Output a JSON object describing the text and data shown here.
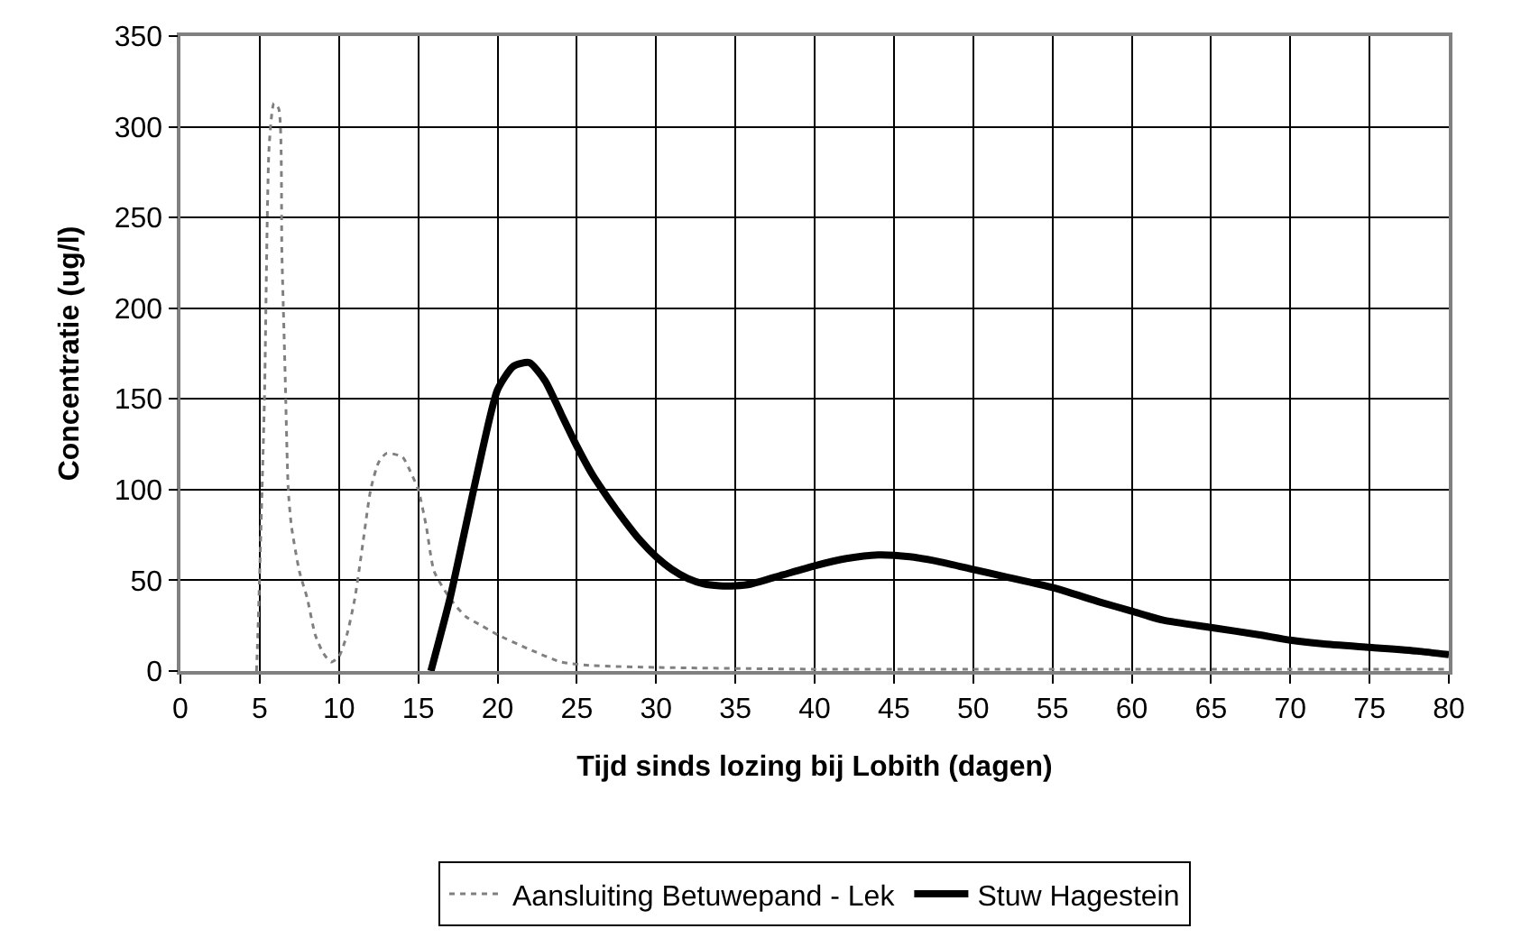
{
  "chart_data": {
    "type": "line",
    "xlabel": "Tijd sinds lozing bij Lobith (dagen)",
    "ylabel": "Concentratie (ug/l)",
    "xlim": [
      0,
      80
    ],
    "xticks": [
      0,
      5,
      10,
      15,
      20,
      25,
      30,
      35,
      40,
      45,
      50,
      55,
      60,
      65,
      70,
      75,
      80
    ],
    "ylim": [
      0,
      350
    ],
    "yticks": [
      0,
      50,
      100,
      150,
      200,
      250,
      300,
      350
    ],
    "grid": true,
    "legend": "bottom",
    "series": [
      {
        "name": "Aansluiting Betuwepand - Lek",
        "color": "#808080",
        "line_style": "dotted",
        "x": [
          4.8,
          4.9,
          5.3,
          5.6,
          5.9,
          6.2,
          6.4,
          6.6,
          6.8,
          7.0,
          7.5,
          8.0,
          8.5,
          9.0,
          9.5,
          10.0,
          10.5,
          11.0,
          11.5,
          12.0,
          12.5,
          13.0,
          14.0,
          14.5,
          15.0,
          15.5,
          16.0,
          17.0,
          18.0,
          19.0,
          20.0,
          22.0,
          24.0,
          26.0,
          30.0,
          40.0,
          50.0,
          60.0,
          70.0,
          80.0
        ],
        "values": [
          0,
          25,
          150,
          290,
          313,
          310,
          230,
          165,
          100,
          80,
          55,
          40,
          20,
          10,
          5,
          8,
          20,
          40,
          70,
          100,
          115,
          120,
          118,
          110,
          100,
          80,
          55,
          40,
          30,
          25,
          20,
          12,
          5,
          3,
          2,
          1,
          1,
          1,
          1,
          1
        ]
      },
      {
        "name": "Stuw Hagestein",
        "color": "#000000",
        "line_style": "solid",
        "x": [
          15.8,
          17,
          18,
          19,
          20,
          21,
          22,
          23,
          24,
          25,
          26,
          27,
          28,
          29,
          30,
          31,
          32,
          33,
          34,
          35,
          36,
          38,
          40,
          42,
          44,
          46,
          48,
          50,
          52,
          55,
          58,
          60,
          62,
          65,
          68,
          70,
          72,
          75,
          78,
          80
        ],
        "values": [
          0,
          40,
          80,
          120,
          155,
          168,
          170,
          160,
          142,
          124,
          108,
          95,
          83,
          72,
          63,
          56,
          51,
          48,
          47,
          47,
          48,
          53,
          58,
          62,
          64,
          63,
          60,
          56,
          52,
          46,
          38,
          33,
          28,
          24,
          20,
          17,
          15,
          13,
          11,
          9
        ]
      }
    ]
  }
}
